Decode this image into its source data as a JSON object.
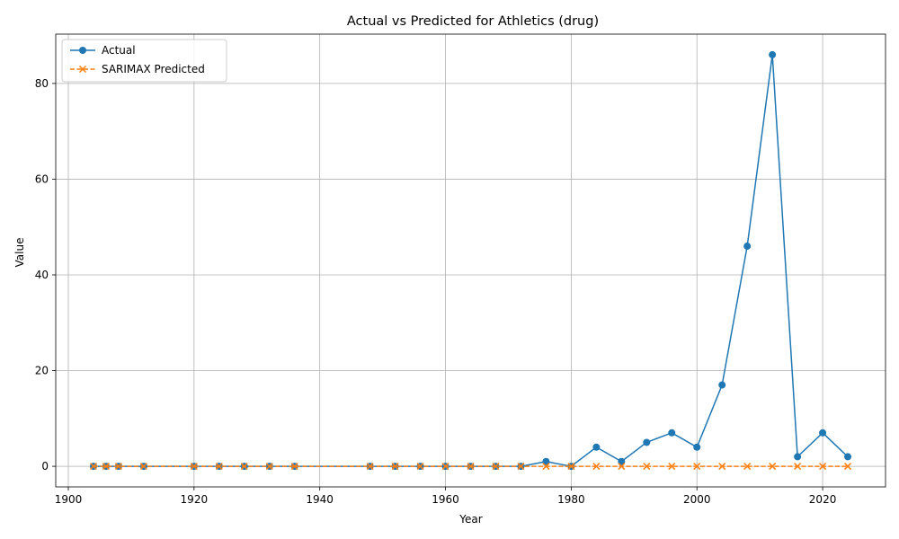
{
  "chart_data": {
    "type": "line",
    "title": "Actual vs Predicted for Athletics (drug)",
    "xlabel": "Year",
    "ylabel": "Value",
    "xlim": [
      1898,
      2030
    ],
    "ylim": [
      -4.3,
      90.3
    ],
    "xticks": [
      1900,
      1920,
      1940,
      1960,
      1980,
      2000,
      2020
    ],
    "yticks": [
      0,
      20,
      40,
      60,
      80
    ],
    "grid": true,
    "legend_position": "top-left",
    "x": [
      1904,
      1906,
      1908,
      1912,
      1920,
      1924,
      1928,
      1932,
      1936,
      1948,
      1952,
      1956,
      1960,
      1964,
      1968,
      1972,
      1976,
      1980,
      1984,
      1988,
      1992,
      1996,
      2000,
      2004,
      2008,
      2012,
      2016,
      2020,
      2024
    ],
    "series": [
      {
        "name": "Actual",
        "color": "#1f77b4",
        "marker": "circle",
        "linestyle": "solid",
        "values": [
          0,
          0,
          0,
          0,
          0,
          0,
          0,
          0,
          0,
          0,
          0,
          0,
          0,
          0,
          0,
          0,
          1,
          0,
          4,
          1,
          5,
          7,
          4,
          17,
          46,
          86,
          2,
          7,
          2
        ]
      },
      {
        "name": "SARIMAX Predicted",
        "color": "#ff7f0e",
        "marker": "x",
        "linestyle": "dashed",
        "values": [
          0,
          0,
          0,
          0,
          0,
          0,
          0,
          0,
          0,
          0,
          0,
          0,
          0,
          0,
          0,
          0,
          0,
          0,
          0,
          0,
          0,
          0,
          0,
          0,
          0,
          0,
          0,
          0,
          0
        ]
      }
    ]
  }
}
